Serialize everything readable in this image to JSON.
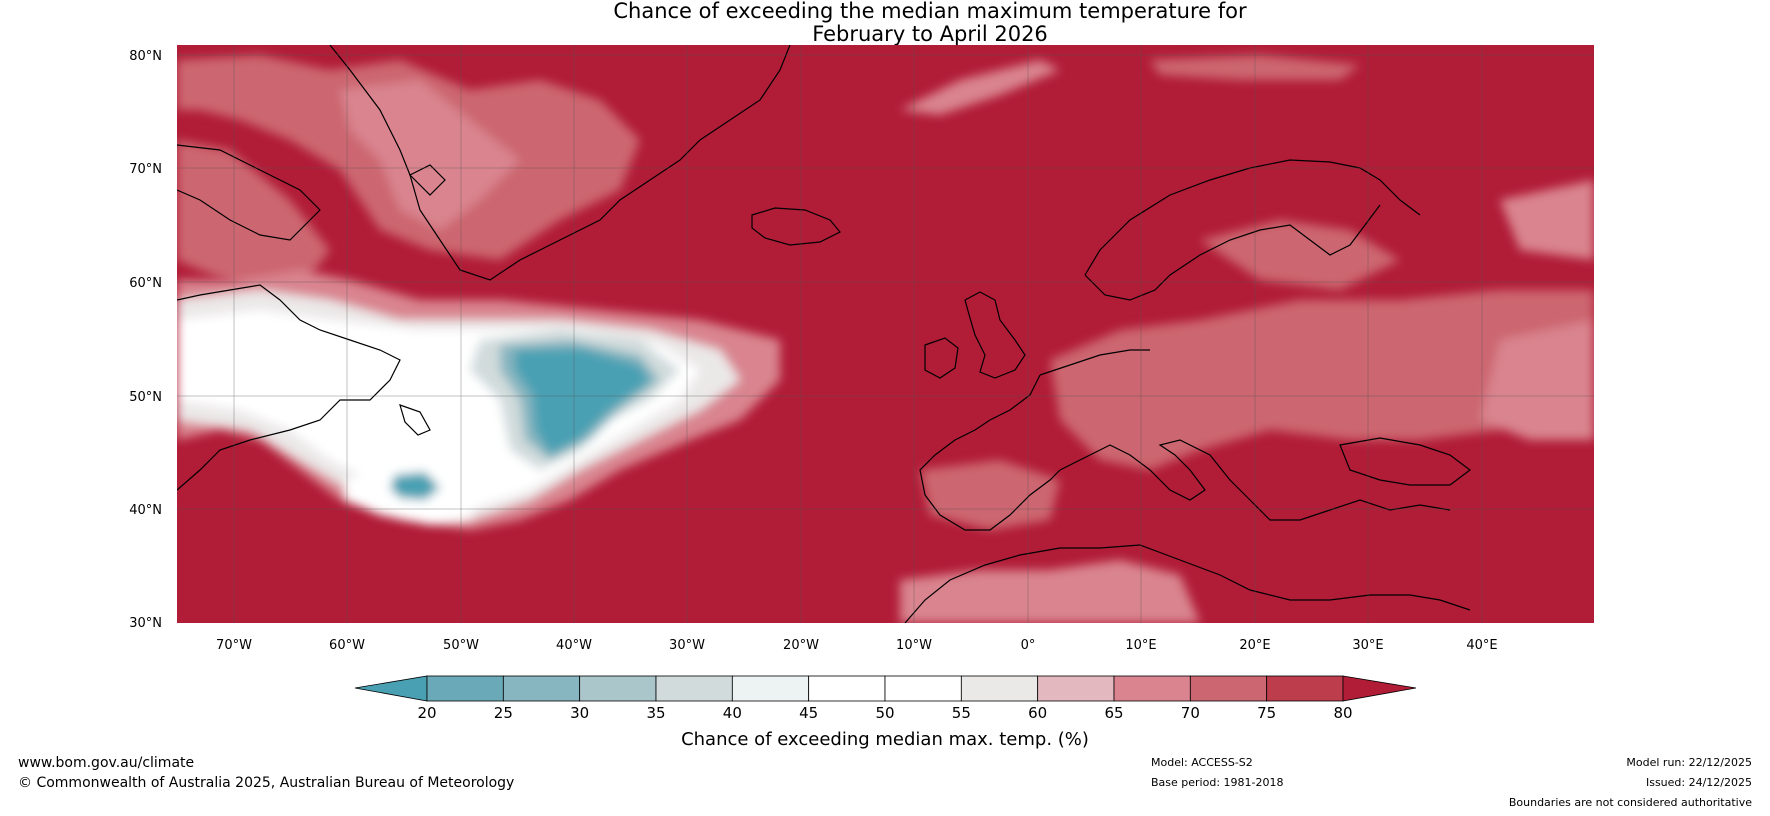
{
  "title": {
    "line1": "Chance of exceeding the median maximum temperature for",
    "line2": "February to April 2026"
  },
  "map": {
    "lat_ticks": [
      "80°N",
      "70°N",
      "60°N",
      "50°N",
      "40°N",
      "30°N"
    ],
    "lon_ticks": [
      "70°W",
      "60°W",
      "50°W",
      "40°W",
      "30°W",
      "20°W",
      "10°W",
      "0°",
      "10°E",
      "20°E",
      "30°E",
      "40°E"
    ],
    "extent": {
      "lon_min": -75,
      "lon_max": 50,
      "lat_min": 30,
      "lat_max": 81
    }
  },
  "colorbar": {
    "ticks": [
      "20",
      "25",
      "30",
      "35",
      "40",
      "45",
      "50",
      "55",
      "60",
      "65",
      "70",
      "75",
      "80"
    ],
    "colors": [
      "#4aa0b3",
      "#6aa9b8",
      "#87b5c0",
      "#abc6cb",
      "#d1dbdc",
      "#edf2f2",
      "#ffffff",
      "#ffffff",
      "#ebe8e8",
      "#e3b9bf",
      "#d9848f",
      "#cc6670",
      "#be3d4d",
      "#b11c37"
    ],
    "label": "Chance of exceeding median max. temp. (%)"
  },
  "footer": {
    "url": "www.bom.gov.au/climate",
    "copyright": "© Commonwealth of Australia 2025, Australian Bureau of Meteorology",
    "model": "Model: ACCESS-S2",
    "base_period": "Base period: 1981-2018",
    "model_run": "Model run: 22/12/2025",
    "issued": "Issued: 24/12/2025",
    "disclaimer": "Boundaries are not considered authoritative"
  }
}
